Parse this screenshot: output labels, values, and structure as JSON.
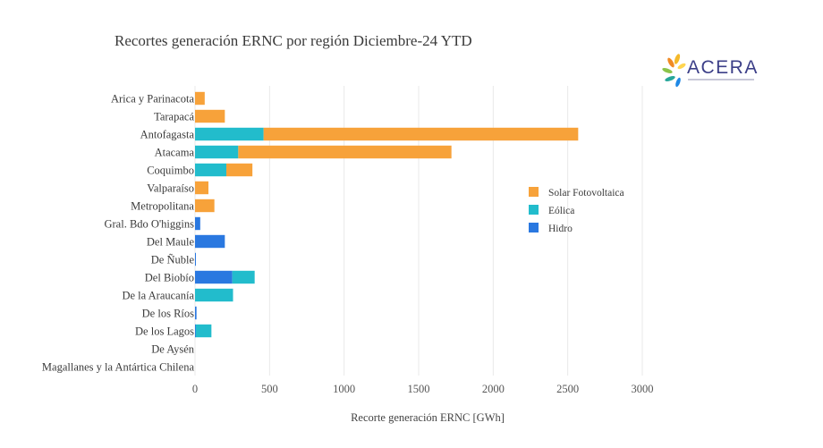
{
  "chart_data": {
    "type": "bar",
    "orientation": "horizontal",
    "stacked": true,
    "title": "Recortes generación ERNC por región Diciembre-24 YTD",
    "xlabel": "Recorte generación ERNC [GWh]",
    "ylabel": "",
    "xlim": [
      0,
      3000
    ],
    "xticks": [
      0,
      500,
      1000,
      1500,
      2000,
      2500,
      3000
    ],
    "grid": true,
    "legend_position": "right",
    "categories": [
      "Arica y Parinacota",
      "Tarapacá",
      "Antofagasta",
      "Atacama",
      "Coquimbo",
      "Valparaíso",
      "Metropolitana",
      "Gral. Bdo O'higgins",
      "Del Maule",
      "De Ñuble",
      "Del Biobío",
      "De la Araucanía",
      "De los Ríos",
      "De los Lagos",
      "De Aysén",
      "Magallanes y la Antártica Chilena"
    ],
    "series": [
      {
        "name": "Hidro",
        "color": "#2a78e0",
        "values": [
          0,
          0,
          0,
          0,
          0,
          0,
          0,
          35,
          200,
          5,
          250,
          0,
          10,
          5,
          0,
          0
        ]
      },
      {
        "name": "Eólica",
        "color": "#22bccc",
        "values": [
          0,
          0,
          460,
          290,
          210,
          0,
          0,
          0,
          0,
          0,
          150,
          255,
          0,
          105,
          0,
          0
        ]
      },
      {
        "name": "Solar Fotovoltaica",
        "color": "#f7a23a",
        "values": [
          65,
          200,
          2110,
          1430,
          175,
          90,
          130,
          0,
          0,
          0,
          0,
          0,
          0,
          0,
          0,
          0
        ]
      }
    ],
    "legend_order": [
      "Solar Fotovoltaica",
      "Eólica",
      "Hidro"
    ]
  },
  "logo": {
    "text": "ACERA"
  }
}
